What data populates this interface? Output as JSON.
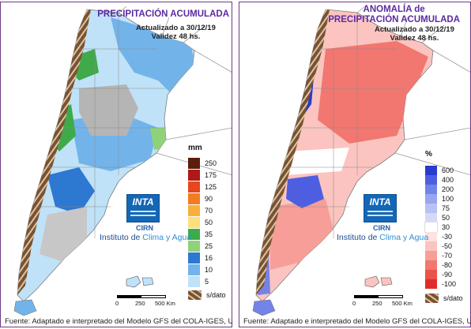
{
  "panels": [
    {
      "title_lines": [
        "PRECIPITACIÓN ACUMULADA"
      ],
      "updated": "Actualizado a 30/12/19",
      "validity": "Validez 48 hs.",
      "legend": {
        "unit": "mm",
        "values": [
          "250",
          "175",
          "125",
          "90",
          "70",
          "50",
          "35",
          "25",
          "16",
          "10",
          "5"
        ],
        "colors": [
          "#5a1e0c",
          "#b01818",
          "#e8461c",
          "#f47c20",
          "#f9b03a",
          "#fde07a",
          "#3faa4a",
          "#8fd27a",
          "#2d78d0",
          "#72b4ea",
          "#bfe2f8"
        ],
        "nodata_label": "s/dato"
      },
      "logo": {
        "inta": "INTA",
        "cirn": "CIRN",
        "instituto_prefix": "Instituto de ",
        "instituto_highlight": "Clima y Agua"
      },
      "scale": {
        "ticks": [
          "0",
          "250",
          "500 Km"
        ]
      },
      "footer": "Fuente: Adaptado e interpretado del Modelo GFS del COLA-IGES, USA."
    },
    {
      "title_lines": [
        "ANOMALÍA de",
        "PRECIPITACIÓN ACUMULADA"
      ],
      "updated": "Actualizado a 30/12/19",
      "validity": "Validez 48 hs.",
      "legend": {
        "unit": "%",
        "values": [
          "600",
          "400",
          "200",
          "100",
          "75",
          "50",
          "30",
          "-30",
          "-50",
          "-70",
          "-80",
          "-90",
          "-100"
        ],
        "colors": [
          "#2a3ad0",
          "#4d5fe0",
          "#7383e8",
          "#98a5ef",
          "#b8c1f4",
          "#d4d9f8",
          "#ffffff",
          "#fde2e0",
          "#fbc4c0",
          "#f79e98",
          "#f27770",
          "#ec524a",
          "#e02c28"
        ],
        "nodata_label": "s/dato"
      },
      "logo": {
        "inta": "INTA",
        "cirn": "CIRN",
        "instituto_prefix": "Instituto de ",
        "instituto_highlight": "Clima y Agua"
      },
      "scale": {
        "ticks": [
          "0",
          "250",
          "500 Km"
        ]
      },
      "footer": "Fuente: Adaptado e interpretado del Modelo GFS del COLA-IGES, USA."
    }
  ],
  "colors": {
    "frame": "#6a3a86",
    "title": "#5b2aa0",
    "andes_nodata": "#7a5230",
    "neighbors": "#ffffff",
    "borders": "#8a8a8a"
  }
}
